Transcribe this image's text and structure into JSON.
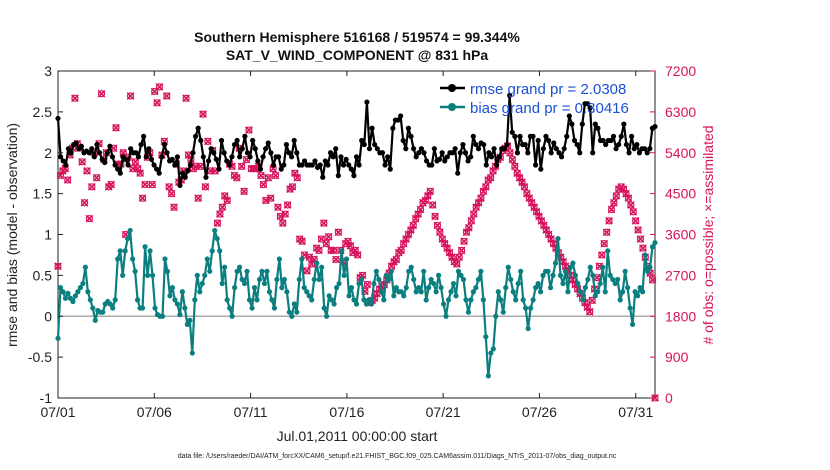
{
  "chart_data": {
    "type": "line",
    "title": "Southern Hemisphere 516168 / 519574 = 99.344%",
    "subtitle": "SAT_V_WIND_COMPONENT @ 831 hPa",
    "xlabel": "Jul.01,2011 00:00:00 start",
    "ylabel": "rmse and bias (model - observation)",
    "y2label": "# of obs: o=possible; ×=assimilated",
    "footnote": "data file: /Users/raeder/DAI/ATM_forcXX/CAM6_setup/f.e21.FHIST_BGC.f09_025.CAM6assim.011/Diags_NTrS_2011-07/obs_diag_output.nc",
    "xlim": [
      1,
      32
    ],
    "ylim": [
      -1,
      3
    ],
    "y2lim": [
      0,
      7200
    ],
    "xticks": [
      1,
      6,
      11,
      16,
      21,
      26,
      31
    ],
    "xticklabels": [
      "07/01",
      "07/06",
      "07/11",
      "07/16",
      "07/21",
      "07/26",
      "07/31"
    ],
    "yticks": [
      -1,
      -0.5,
      0,
      0.5,
      1,
      1.5,
      2,
      2.5,
      3
    ],
    "yticklabels": [
      "-1",
      "-0.5",
      "0",
      "0.5",
      "1",
      "1.5",
      "2",
      "2.5",
      "3"
    ],
    "y2ticks": [
      0,
      900,
      1800,
      2700,
      3600,
      4500,
      5400,
      6300,
      7200
    ],
    "y2ticklabels": [
      "0",
      "900",
      "1800",
      "2700",
      "3600",
      "4500",
      "5400",
      "6300",
      "7200"
    ],
    "grid": false,
    "legend_position": "top-right",
    "series": [
      {
        "name": "rmse grand pr = 2.0308",
        "axis": "left",
        "color": "#000000",
        "values": [
          2.42,
          1.95,
          1.9,
          1.85,
          2.05,
          2.0,
          2.1,
          2.12,
          2.05,
          2.08,
          2.0,
          2.02,
          2.0,
          2.05,
          1.95,
          2.1,
          2.0,
          1.92,
          1.88,
          2.0,
          2.08,
          1.95,
          1.85,
          1.8,
          1.75,
          1.95,
          1.92,
          1.85,
          2.05,
          2.0,
          2.0,
          1.95,
          2.1,
          2.2,
          1.95,
          2.05,
          1.92,
          1.85,
          1.8,
          1.75,
          1.95,
          2.1,
          2.0,
          1.9,
          1.92,
          1.85,
          1.95,
          1.6,
          1.75,
          1.7,
          1.78,
          1.85,
          2.0,
          2.2,
          2.3,
          2.15,
          1.95,
          1.7,
          1.9,
          2.05,
          2.0,
          1.92,
          1.8,
          2.15,
          2.0,
          1.9,
          1.85,
          1.95,
          2.1,
          2.15,
          1.95,
          2.05,
          2.2,
          2.0,
          1.95,
          2.15,
          2.05,
          1.9,
          1.8,
          1.95,
          2.05,
          2.12,
          2.0,
          1.85,
          1.95,
          1.95,
          1.8,
          1.85,
          2.1,
          2.0,
          1.95,
          2.15,
          2.0,
          1.85,
          1.85,
          1.9,
          1.85,
          1.85,
          1.85,
          1.9,
          1.82,
          1.85,
          1.7,
          1.9,
          1.85,
          2.0,
          1.95,
          2.05,
          1.72,
          1.95,
          1.85,
          1.92,
          1.85,
          1.8,
          1.72,
          1.95,
          1.85,
          2.15,
          2.1,
          2.62,
          2.05,
          2.3,
          2.1,
          2.05,
          2.0,
          2.0,
          1.85,
          1.95,
          1.8,
          2.3,
          2.4,
          2.4,
          2.45,
          2.15,
          2.05,
          2.3,
          2.2,
          2.05,
          1.95,
          2.0,
          2.05,
          2.0,
          1.9,
          1.85,
          1.85,
          2.05,
          1.9,
          1.92,
          2.0,
          1.9,
          1.95,
          2.0,
          2.0,
          2.05,
          1.75,
          2.0,
          2.1,
          2.0,
          1.9,
          1.95,
          2.2,
          2.1,
          2.05,
          2.12,
          2.1,
          1.85,
          2.0,
          1.95,
          2.05,
          1.85,
          1.95,
          2.05,
          2.05,
          2.1,
          2.7,
          2.25,
          2.2,
          2.0,
          2.2,
          2.1,
          2.1,
          2.0,
          2.2,
          2.2,
          1.85,
          2.15,
          1.8,
          2.05,
          2.2,
          2.15,
          2.0,
          2.12,
          2.05,
          2.0,
          1.95,
          2.05,
          2.2,
          2.45,
          2.35,
          2.15,
          2.1,
          2.0,
          2.35,
          2.6,
          2.6,
          2.55,
          2.0,
          2.35,
          2.3,
          2.15,
          2.15,
          2.1,
          2.15,
          2.15,
          2.2,
          2.05,
          2.1,
          2.2,
          2.35,
          2.1,
          2.0,
          2.2,
          2.05,
          2.1,
          2.0,
          2.05,
          2.05,
          2.0,
          2.05,
          2.3,
          2.32
        ]
      },
      {
        "name": "bias grand pr = 0.30416",
        "axis": "left",
        "color": "#0b7f7f",
        "values": [
          -0.27,
          0.35,
          0.3,
          0.22,
          0.28,
          0.22,
          0.18,
          0.25,
          0.3,
          0.35,
          0.4,
          0.6,
          0.3,
          0.2,
          0.1,
          -0.05,
          0.07,
          0.05,
          0.05,
          0.15,
          0.18,
          0.15,
          0.1,
          0.2,
          0.7,
          0.8,
          0.5,
          0.8,
          0.95,
          1.05,
          0.7,
          0.55,
          0.2,
          0.1,
          0.1,
          0.85,
          0.5,
          0.8,
          0.5,
          0.1,
          0.02,
          0.0,
          0.0,
          0.7,
          0.55,
          0.25,
          0.35,
          0.2,
          0.15,
          0.02,
          0.3,
          0.1,
          -0.1,
          -0.05,
          -0.45,
          0.2,
          0.5,
          0.3,
          0.4,
          0.5,
          0.7,
          0.55,
          0.8,
          1.05,
          0.95,
          0.8,
          0.4,
          0.6,
          0.2,
          0.1,
          0.0,
          0.35,
          0.55,
          0.6,
          0.45,
          0.4,
          0.55,
          0.2,
          0.1,
          0.35,
          0.2,
          0.45,
          0.55,
          0.4,
          0.55,
          0.3,
          0.2,
          0.1,
          0.45,
          0.7,
          0.35,
          0.45,
          0.3,
          0.05,
          0.0,
          0.15,
          0.05,
          0.45,
          0.7,
          0.35,
          0.3,
          0.25,
          0.2,
          0.45,
          0.65,
          0.45,
          0.6,
          0.1,
          0.0,
          0.25,
          0.2,
          0.15,
          0.35,
          0.4,
          0.8,
          0.5,
          0.7,
          0.25,
          0.35,
          0.2,
          0.15,
          0.4,
          0.45,
          0.2,
          0.15,
          0.2,
          0.15,
          0.4,
          0.55,
          0.45,
          0.3,
          0.2,
          0.5,
          0.45,
          0.55,
          0.25,
          0.35,
          0.3,
          0.3,
          0.25,
          0.35,
          0.55,
          0.6,
          0.45,
          0.3,
          0.35,
          0.3,
          0.55,
          0.2,
          0.35,
          0.45,
          0.4,
          0.3,
          0.5,
          0.35,
          0.15,
          0.0,
          0.2,
          0.3,
          0.4,
          0.25,
          0.55,
          0.5,
          0.45,
          0.2,
          0.05,
          0.2,
          0.3,
          0.35,
          0.45,
          0.55,
          0.2,
          -0.25,
          -0.73,
          -0.45,
          -0.4,
          0.0,
          0.3,
          0.2,
          0.05,
          0.35,
          0.6,
          0.45,
          0.3,
          0.2,
          0.4,
          0.55,
          0.2,
          0.1,
          -0.15,
          0.1,
          0.2,
          0.35,
          0.4,
          0.3,
          0.5,
          0.55,
          0.55,
          0.35,
          0.5,
          0.65,
          0.95,
          0.5,
          0.4,
          0.55,
          0.3,
          0.6,
          0.65,
          0.5,
          0.4,
          0.3,
          0.2,
          0.35,
          0.45,
          0.6,
          0.5,
          0.25,
          0.3,
          0.4,
          0.6,
          0.3,
          0.8,
          0.5,
          0.45,
          0.4,
          0.45,
          0.2,
          0.3,
          0.55,
          0.35,
          0.1,
          -0.1,
          0.3,
          0.25,
          0.35,
          0.3,
          0.75,
          0.55,
          0.6,
          0.85,
          0.9
        ]
      },
      {
        "name": "obs possible",
        "axis": "right",
        "color": "#d6145d",
        "values": [
          2900,
          4900,
          5000,
          5050,
          4800,
          5350,
          5500,
          6600,
          5600,
          5500,
          5200,
          4300,
          5000,
          3950,
          4650,
          5400,
          4850,
          5600,
          6700,
          5250,
          5400,
          4650,
          4700,
          5500,
          5950,
          5150,
          5150,
          5400,
          3600,
          5300,
          6650,
          5050,
          5200,
          5050,
          4950,
          4400,
          4700,
          5300,
          5400,
          4700,
          6750,
          6500,
          6850,
          5350,
          5650,
          6650,
          4650,
          4500,
          4200,
          5150,
          4750,
          4800,
          5000,
          6600,
          5350,
          5250,
          5050,
          5100,
          4400,
          5100,
          6250,
          4650,
          5650,
          5000,
          5450,
          5000,
          3850,
          4050,
          4200,
          4450,
          4350,
          5150,
          5100,
          4900,
          4850,
          5500,
          5100,
          4550,
          5250,
          5900,
          5050,
          5050,
          5050,
          5100,
          4900,
          4700,
          4350,
          4850,
          4400,
          5050,
          4900,
          4200,
          4000,
          3850,
          4050,
          4250,
          4600,
          4650,
          4950,
          4850,
          3500,
          3450,
          3150,
          2800,
          3100,
          2950,
          3050,
          3300,
          3250,
          3500,
          3850,
          3400,
          3550,
          3250,
          3250,
          3050,
          3650,
          3250,
          3000,
          3400,
          3450,
          3350,
          3200,
          3250,
          3150,
          2650,
          2700,
          2350,
          2500,
          2100,
          2150,
          2200,
          2300,
          2400,
          2450,
          2500,
          2600,
          2750,
          2900,
          3000,
          3050,
          3200,
          3250,
          3400,
          3500,
          3600,
          3700,
          3800,
          3950,
          4050,
          4150,
          4300,
          4350,
          4450,
          4550,
          4250,
          4000,
          3800,
          3650,
          3500,
          3400,
          3300,
          3200,
          3100,
          3000,
          2950,
          3100,
          3250,
          3450,
          3650,
          3750,
          3900,
          4050,
          4200,
          4300,
          4400,
          4550,
          4650,
          4800,
          4850,
          5000,
          5100,
          5250,
          5300,
          5450,
          5500,
          5550,
          5400,
          5250,
          5100,
          4950,
          4850,
          4750,
          4650,
          4500,
          4400,
          4300,
          4200,
          4100,
          4000,
          3900,
          3800,
          3700,
          3600,
          3500,
          3400,
          3300,
          3200,
          3100,
          3000,
          2900,
          2800,
          2700,
          2600,
          2500,
          2400,
          2300,
          2200,
          2100,
          2000,
          1900,
          2150,
          2400,
          2650,
          2900,
          3150,
          3400,
          3650,
          3900,
          4150,
          4300,
          4450,
          4600,
          4650,
          4600,
          4500,
          4400,
          4250,
          4100,
          3900,
          3700,
          3500,
          3300,
          3100,
          2900,
          2750,
          2600,
          0
        ]
      },
      {
        "name": "obs assimilated",
        "axis": "right",
        "color": "#d6145d",
        "values": [
          2900,
          4900,
          5000,
          5050,
          4800,
          5350,
          5500,
          6600,
          5600,
          5500,
          5200,
          4300,
          5000,
          3950,
          4650,
          5400,
          4850,
          5600,
          6700,
          5250,
          5400,
          4650,
          4700,
          5500,
          5950,
          5150,
          5150,
          5400,
          3600,
          5300,
          6650,
          5050,
          5200,
          5050,
          4950,
          4400,
          4700,
          5300,
          5400,
          4700,
          6750,
          6500,
          6850,
          5350,
          5650,
          6650,
          4650,
          4500,
          4200,
          5150,
          4750,
          4800,
          5000,
          6600,
          5350,
          5250,
          5050,
          5100,
          4400,
          5100,
          6250,
          4650,
          5650,
          5000,
          5450,
          5000,
          3850,
          4050,
          4200,
          4450,
          4350,
          5150,
          5100,
          4900,
          4850,
          5500,
          5100,
          4550,
          5250,
          5900,
          5050,
          5050,
          5050,
          5100,
          4900,
          4700,
          4350,
          4850,
          4400,
          5050,
          4900,
          4200,
          4000,
          3850,
          4050,
          4250,
          4600,
          4650,
          4950,
          4850,
          3500,
          3450,
          3150,
          2800,
          3100,
          2950,
          3050,
          3300,
          3250,
          3500,
          3850,
          3400,
          3550,
          3250,
          3250,
          3050,
          3650,
          3250,
          3000,
          3400,
          3450,
          3350,
          3200,
          3250,
          3150,
          2650,
          2700,
          2350,
          2500,
          2100,
          2150,
          2200,
          2300,
          2400,
          2450,
          2500,
          2600,
          2750,
          2900,
          3000,
          3050,
          3200,
          3250,
          3400,
          3500,
          3600,
          3700,
          3800,
          3950,
          4050,
          4150,
          4300,
          4350,
          4450,
          4550,
          4250,
          4000,
          3800,
          3650,
          3500,
          3400,
          3300,
          3200,
          3100,
          3000,
          2950,
          3100,
          3250,
          3450,
          3650,
          3750,
          3900,
          4050,
          4200,
          4300,
          4400,
          4550,
          4650,
          4800,
          4850,
          5000,
          5100,
          5250,
          5300,
          5450,
          5500,
          5550,
          5400,
          5250,
          5100,
          4950,
          4850,
          4750,
          4650,
          4500,
          4400,
          4300,
          4200,
          4100,
          4000,
          3900,
          3800,
          3700,
          3600,
          3500,
          3400,
          3300,
          3200,
          3100,
          3000,
          2900,
          2800,
          2700,
          2600,
          2500,
          2400,
          2300,
          2200,
          2100,
          2000,
          1900,
          2150,
          2400,
          2650,
          2900,
          3150,
          3400,
          3650,
          3900,
          4150,
          4300,
          4450,
          4600,
          4650,
          4600,
          4500,
          4400,
          4250,
          4100,
          3900,
          3700,
          3500,
          3300,
          3100,
          2900,
          2750,
          2600,
          0
        ]
      }
    ]
  }
}
